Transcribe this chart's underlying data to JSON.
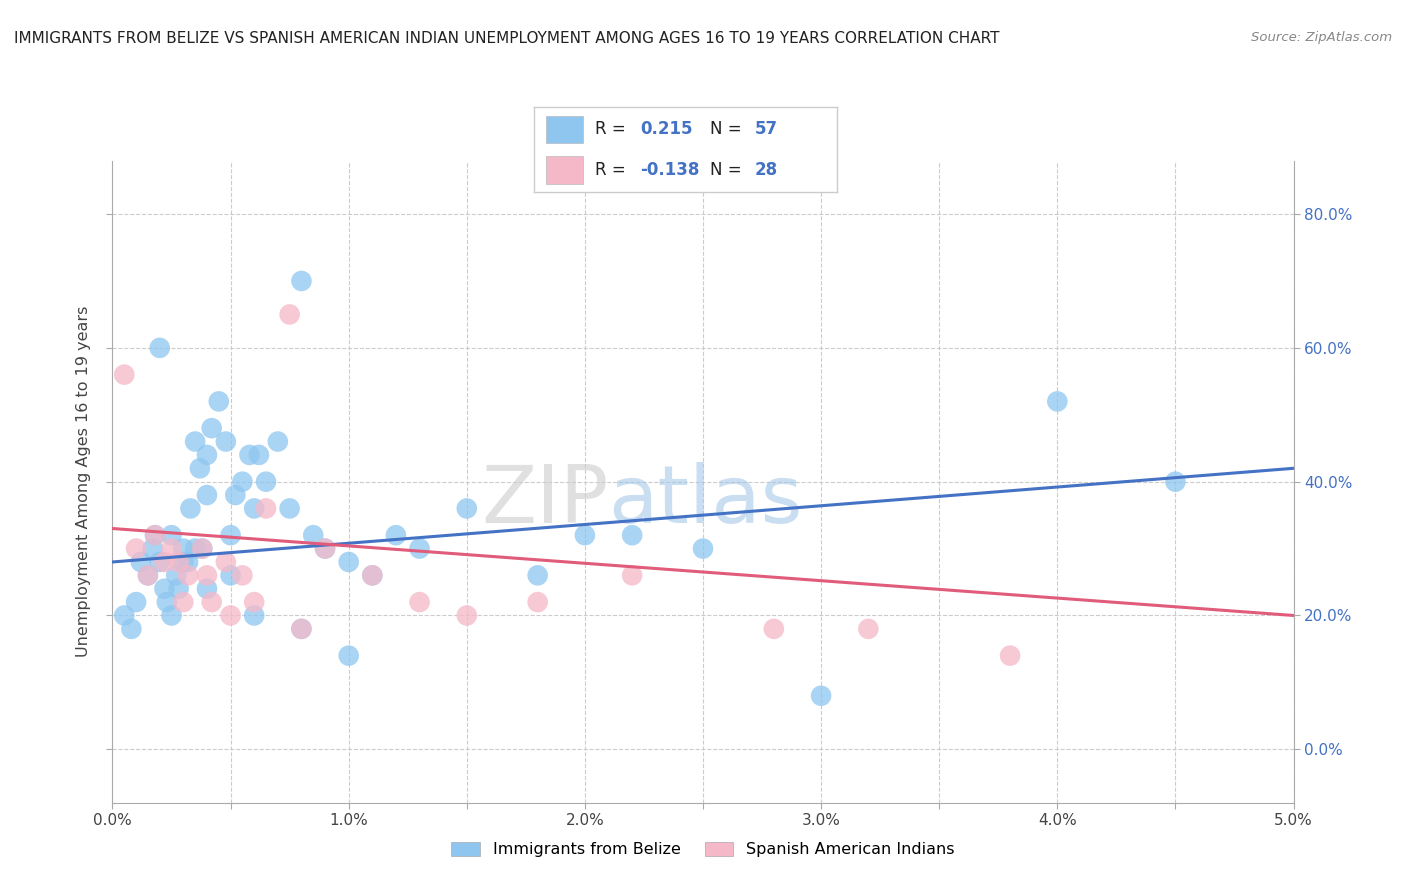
{
  "title": "IMMIGRANTS FROM BELIZE VS SPANISH AMERICAN INDIAN UNEMPLOYMENT AMONG AGES 16 TO 19 YEARS CORRELATION CHART",
  "source": "Source: ZipAtlas.com",
  "ylabel": "Unemployment Among Ages 16 to 19 years",
  "xlim": [
    0.0,
    5.0
  ],
  "ylim": [
    -8.0,
    88.0
  ],
  "x_ticks": [
    0.0,
    0.5,
    1.0,
    1.5,
    2.0,
    2.5,
    3.0,
    3.5,
    4.0,
    4.5,
    5.0
  ],
  "x_tick_labels": [
    "0.0%",
    "",
    "1.0%",
    "",
    "2.0%",
    "",
    "3.0%",
    "",
    "4.0%",
    "",
    "5.0%"
  ],
  "y_ticks": [
    0.0,
    20.0,
    40.0,
    60.0,
    80.0
  ],
  "y_tick_labels_right": [
    "0.0%",
    "20.0%",
    "40.0%",
    "60.0%",
    "80.0%"
  ],
  "blue_color": "#8EC6F0",
  "pink_color": "#F5B8C8",
  "blue_line_color": "#4472C4",
  "pink_line_color": "#E05C7A",
  "background_color": "#FFFFFF",
  "grid_color": "#CCCCCC",
  "legend_R1": "0.215",
  "legend_N1": "57",
  "legend_R2": "-0.138",
  "legend_N2": "28",
  "legend_label1": "Immigrants from Belize",
  "legend_label2": "Spanish American Indians",
  "watermark_zip": "ZIP",
  "watermark_atlas": "atlas",
  "blue_trend_x": [
    0.0,
    5.0
  ],
  "blue_trend_y": [
    28.0,
    42.0
  ],
  "pink_trend_x": [
    0.0,
    5.0
  ],
  "pink_trend_y": [
    33.0,
    20.0
  ],
  "blue_x": [
    0.05,
    0.08,
    0.1,
    0.12,
    0.15,
    0.17,
    0.18,
    0.2,
    0.22,
    0.23,
    0.25,
    0.27,
    0.28,
    0.3,
    0.32,
    0.33,
    0.35,
    0.37,
    0.38,
    0.4,
    0.4,
    0.42,
    0.45,
    0.48,
    0.5,
    0.52,
    0.55,
    0.58,
    0.6,
    0.62,
    0.65,
    0.7,
    0.75,
    0.8,
    0.85,
    0.9,
    1.0,
    1.1,
    1.2,
    1.3,
    1.5,
    1.8,
    2.0,
    2.2,
    2.5,
    3.0,
    4.0,
    4.5,
    0.25,
    0.3,
    0.4,
    0.5,
    0.6,
    0.8,
    1.0,
    0.2,
    0.35
  ],
  "blue_y": [
    20,
    18,
    22,
    28,
    26,
    30,
    32,
    28,
    24,
    22,
    20,
    26,
    24,
    30,
    28,
    36,
    30,
    42,
    30,
    38,
    44,
    48,
    52,
    46,
    32,
    38,
    40,
    44,
    36,
    44,
    40,
    46,
    36,
    70,
    32,
    30,
    28,
    26,
    32,
    30,
    36,
    26,
    32,
    32,
    30,
    8,
    52,
    40,
    32,
    28,
    24,
    26,
    20,
    18,
    14,
    60,
    46
  ],
  "pink_x": [
    0.05,
    0.1,
    0.15,
    0.18,
    0.22,
    0.28,
    0.32,
    0.38,
    0.42,
    0.48,
    0.55,
    0.65,
    0.75,
    0.9,
    1.1,
    1.3,
    1.5,
    1.8,
    2.2,
    2.8,
    3.2,
    3.8,
    0.25,
    0.3,
    0.4,
    0.5,
    0.6,
    0.8
  ],
  "pink_y": [
    56,
    30,
    26,
    32,
    28,
    28,
    26,
    30,
    22,
    28,
    26,
    36,
    65,
    30,
    26,
    22,
    20,
    22,
    26,
    18,
    18,
    14,
    30,
    22,
    26,
    20,
    22,
    18
  ]
}
